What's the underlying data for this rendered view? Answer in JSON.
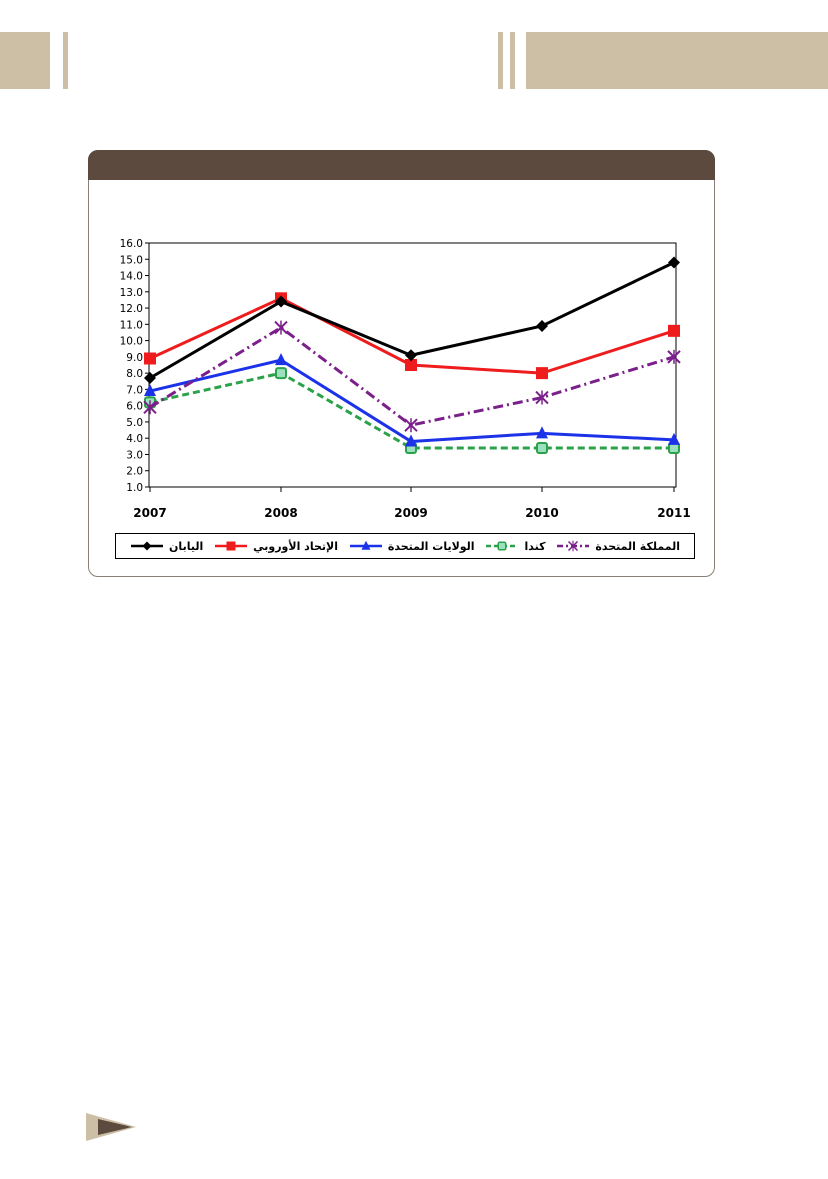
{
  "colors": {
    "header_tan": "#cdbfa6",
    "panel_title_brown": "#5b4a3d",
    "japan": "#000000",
    "eu": "#ee1c1c",
    "usa": "#1c32e8",
    "canada": "#2aa24a",
    "uk": "#7b1f8a"
  },
  "chart_data": {
    "type": "line",
    "categories": [
      "2007",
      "2008",
      "2009",
      "2010",
      "2011"
    ],
    "ylim": [
      1.0,
      16.0
    ],
    "yticks": [
      "1.0",
      "2.0",
      "3.0",
      "4.0",
      "5.0",
      "6.0",
      "7.0",
      "8.0",
      "9.0",
      "10.0",
      "11.0",
      "12.0",
      "13.0",
      "14.0",
      "15.0",
      "16.0"
    ],
    "grid": false,
    "legend_position": "bottom",
    "series": [
      {
        "name": "اليابان",
        "color": "#000000",
        "marker": "diamond",
        "dash": "solid",
        "values": [
          7.7,
          12.4,
          9.1,
          10.9,
          14.8
        ]
      },
      {
        "name": "الإتحاد الأوروبي",
        "color": "#ee1c1c",
        "marker": "square",
        "dash": "solid",
        "values": [
          8.9,
          12.6,
          8.5,
          8.0,
          10.6
        ]
      },
      {
        "name": "الولايات المتحدة",
        "color": "#1c32e8",
        "marker": "triangle",
        "dash": "solid",
        "values": [
          6.9,
          8.8,
          3.8,
          4.3,
          3.9
        ]
      },
      {
        "name": "كندا",
        "color": "#2aa24a",
        "marker": "circle-open",
        "dash": "dashed",
        "values": [
          6.2,
          8.0,
          3.4,
          3.4,
          3.4
        ]
      },
      {
        "name": "المملكة المتحدة",
        "color": "#7b1f8a",
        "marker": "x",
        "dash": "dashdot",
        "values": [
          5.9,
          10.8,
          4.8,
          6.5,
          9.0
        ]
      }
    ]
  },
  "icons": {
    "footer": "play-arrow-icon"
  }
}
